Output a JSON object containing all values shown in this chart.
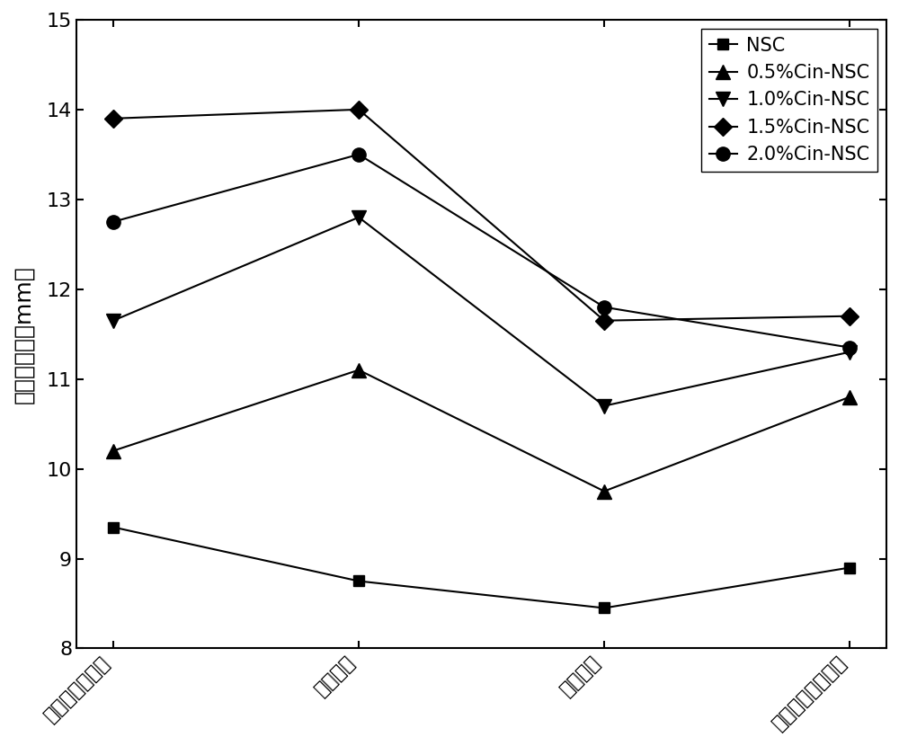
{
  "categories": [
    "金黄色葫萄球菌",
    "沙门氏菌",
    "大肠杆菌",
    "托拉斯假单胞杆菌"
  ],
  "series": [
    {
      "label": "NSC",
      "values": [
        9.35,
        8.75,
        8.45,
        8.9
      ],
      "marker": "s",
      "color": "#000000",
      "markersize": 9,
      "linewidth": 1.5
    },
    {
      "label": "0.5%Cin-NSC",
      "values": [
        10.2,
        11.1,
        9.75,
        10.8
      ],
      "marker": "^",
      "color": "#000000",
      "markersize": 11,
      "linewidth": 1.5
    },
    {
      "label": "1.0%Cin-NSC",
      "values": [
        11.65,
        12.8,
        10.7,
        11.3
      ],
      "marker": "v",
      "color": "#000000",
      "markersize": 11,
      "linewidth": 1.5
    },
    {
      "label": "1.5%Cin-NSC",
      "values": [
        13.9,
        14.0,
        11.65,
        11.7
      ],
      "marker": "D",
      "color": "#000000",
      "markersize": 10,
      "linewidth": 1.5
    },
    {
      "label": "2.0%Cin-NSC",
      "values": [
        12.75,
        13.5,
        11.8,
        11.35
      ],
      "marker": "o",
      "color": "#000000",
      "markersize": 11,
      "linewidth": 1.5
    }
  ],
  "ylabel": "抑菌圈直径（mm）",
  "ylim": [
    8,
    15
  ],
  "yticks": [
    8,
    9,
    10,
    11,
    12,
    13,
    14,
    15
  ],
  "label_fontsize": 18,
  "tick_fontsize": 16,
  "legend_fontsize": 15,
  "xtick_rotation": 45,
  "background_color": "#ffffff"
}
